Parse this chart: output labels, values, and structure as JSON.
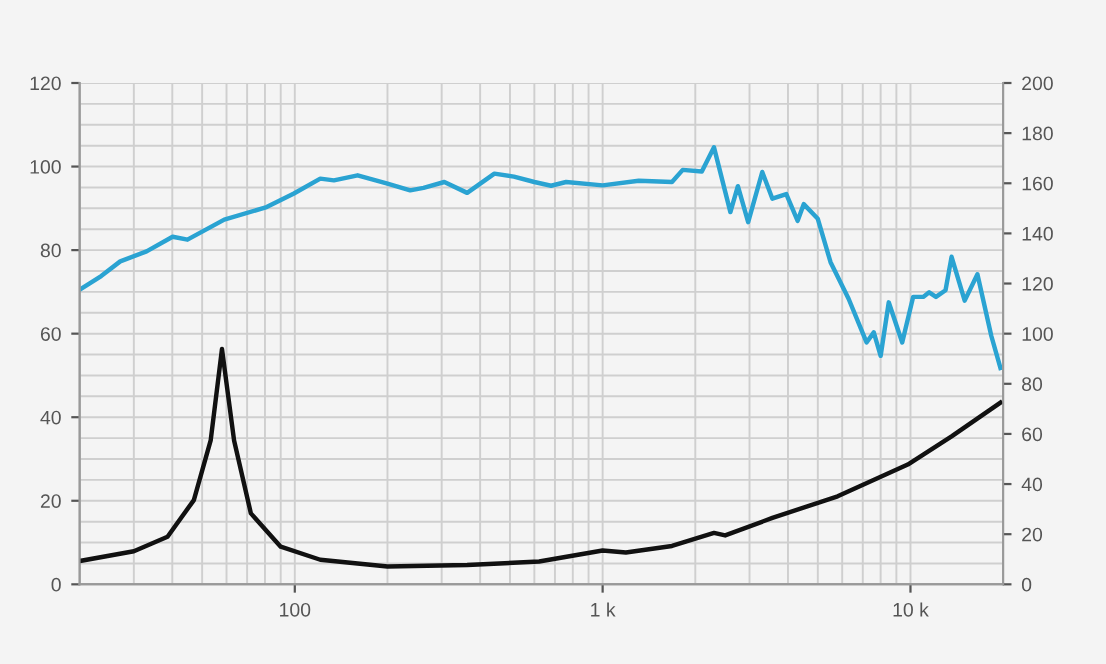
{
  "chart_data": {
    "type": "line",
    "log": "x",
    "grid": true,
    "marker": "none",
    "line_style": "solid",
    "xlim": [
      20,
      20000
    ],
    "xticks": [
      {
        "value": 100,
        "label": "100"
      },
      {
        "value": 1000,
        "label": "1 k"
      },
      {
        "value": 10000,
        "label": "10 k"
      }
    ],
    "ylim": [
      0,
      120
    ],
    "yticks": [
      0,
      20,
      40,
      60,
      80,
      100,
      120
    ],
    "y2lim": [
      0,
      200
    ],
    "y2ticks": [
      0,
      20,
      40,
      60,
      80,
      100,
      120,
      140,
      160,
      180,
      200
    ],
    "series": [
      {
        "color": "#2aa3d2",
        "x": [
          20,
          23.5,
          27.1,
          33,
          40.1,
          44.8,
          59,
          81,
          99,
          121,
          134,
          160,
          200,
          237,
          262,
          306,
          363,
          445,
          515,
          600,
          680,
          761,
          1000,
          1310,
          1680,
          1820,
          2100,
          2300,
          2600,
          2750,
          2970,
          3300,
          3560,
          3950,
          4300,
          4500,
          5000,
          5500,
          6300,
          7200,
          7600,
          8000,
          8500,
          9400,
          10200,
          11000,
          11500,
          12100,
          13000,
          13600,
          15000,
          16500,
          18300,
          19600
        ],
        "values": [
          70.5,
          73.8,
          77.3,
          79.7,
          83.2,
          82.5,
          87.3,
          90.3,
          93.5,
          97.1,
          96.7,
          97.9,
          95.9,
          94.3,
          94.9,
          96.3,
          93.7,
          98.3,
          97.6,
          96.3,
          95.4,
          96.3,
          95.5,
          96.6,
          96.3,
          99.2,
          98.8,
          104.6,
          89.1,
          95.3,
          86.7,
          98.7,
          92.3,
          93.4,
          87,
          91,
          87.5,
          77.1,
          68.3,
          57.9,
          60.3,
          54.7,
          67.5,
          57.9,
          68.8,
          68.8,
          69.9,
          68.8,
          70.4,
          78.4,
          67.9,
          74.2,
          59.5,
          51.8
        ]
      },
      {
        "color": "#111111",
        "axis": "y2",
        "x": [
          20,
          30,
          38.6,
          47,
          53.3,
          58,
          63.5,
          72,
          90,
          121,
          200,
          363,
          622,
          1000,
          1190,
          1680,
          2300,
          2500,
          3560,
          5800,
          9800,
          13600,
          19600
        ],
        "values": [
          9.3,
          13.2,
          19,
          33.6,
          57.4,
          93.9,
          57.4,
          28.3,
          15,
          9.8,
          7.1,
          7.7,
          9.1,
          13.5,
          12.7,
          15.3,
          20.5,
          19.5,
          26.5,
          35.1,
          47.8,
          59,
          72.5
        ]
      }
    ]
  }
}
